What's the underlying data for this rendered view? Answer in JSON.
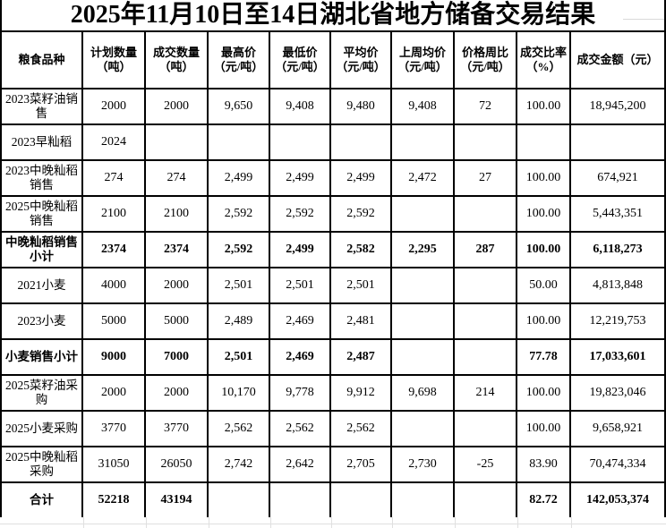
{
  "title": "2025年11月10日至14日湖北省地方储备交易结果",
  "table": {
    "columns": [
      {
        "label": "粮食品种",
        "width": 91
      },
      {
        "label": "计划数量\n（吨）",
        "width": 70
      },
      {
        "label": "成交数量\n（吨）",
        "width": 70
      },
      {
        "label": "最高价\n（元/吨）",
        "width": 69
      },
      {
        "label": "最低价\n（元/吨）",
        "width": 68
      },
      {
        "label": "平均价\n（元/吨）",
        "width": 68
      },
      {
        "label": "上周均价\n（元/吨）",
        "width": 70
      },
      {
        "label": "价格周比\n（元/吨）",
        "width": 70
      },
      {
        "label": "成交比率\n（%）",
        "width": 60
      },
      {
        "label": "成交金额（元）",
        "width": 106
      }
    ],
    "rows": [
      {
        "label": "2023菜籽油销\n售",
        "bold": false,
        "values": [
          "2000",
          "2000",
          "9,650",
          "9,408",
          "9,480",
          "9,408",
          "72",
          "100.00",
          "18,945,200"
        ]
      },
      {
        "label": "2023早籼稻",
        "bold": false,
        "values": [
          "2024",
          "",
          "",
          "",
          "",
          "",
          "",
          "",
          ""
        ]
      },
      {
        "label": "2023中晚籼稻\n销售",
        "bold": false,
        "values": [
          "274",
          "274",
          "2,499",
          "2,499",
          "2,499",
          "2,472",
          "27",
          "100.00",
          "674,921"
        ]
      },
      {
        "label": "2025中晚籼稻\n销售",
        "bold": false,
        "values": [
          "2100",
          "2100",
          "2,592",
          "2,592",
          "2,592",
          "",
          "",
          "100.00",
          "5,443,351"
        ]
      },
      {
        "label": "中晚籼稻销售\n小计",
        "bold": true,
        "values": [
          "2374",
          "2374",
          "2,592",
          "2,499",
          "2,582",
          "2,295",
          "287",
          "100.00",
          "6,118,273"
        ]
      },
      {
        "label": "2021小麦",
        "bold": false,
        "values": [
          "4000",
          "2000",
          "2,501",
          "2,501",
          "2,501",
          "",
          "",
          "50.00",
          "4,813,848"
        ]
      },
      {
        "label": "2023小麦",
        "bold": false,
        "values": [
          "5000",
          "5000",
          "2,489",
          "2,469",
          "2,481",
          "",
          "",
          "100.00",
          "12,219,753"
        ]
      },
      {
        "label": "小麦销售小计",
        "bold": true,
        "values": [
          "9000",
          "7000",
          "2,501",
          "2,469",
          "2,487",
          "",
          "",
          "77.78",
          "17,033,601"
        ]
      },
      {
        "label": "2025菜籽油采\n购",
        "bold": false,
        "values": [
          "2000",
          "2000",
          "10,170",
          "9,778",
          "9,912",
          "9,698",
          "214",
          "100.00",
          "19,823,046"
        ]
      },
      {
        "label": "2025小麦采购",
        "bold": false,
        "values": [
          "3770",
          "3770",
          "2,562",
          "2,562",
          "2,562",
          "",
          "",
          "100.00",
          "9,658,921"
        ]
      },
      {
        "label": "2025中晚籼稻\n采购",
        "bold": false,
        "values": [
          "31050",
          "26050",
          "2,742",
          "2,642",
          "2,705",
          "2,730",
          "-25",
          "83.90",
          "70,474,334"
        ]
      },
      {
        "label": "合计",
        "bold": true,
        "values": [
          "52218",
          "43194",
          "",
          "",
          "",
          "",
          "",
          "82.72",
          "142,053,374"
        ]
      }
    ]
  },
  "colors": {
    "border": "#000000",
    "gridline": "#e0e0e0",
    "background": "#ffffff",
    "text": "#000000"
  }
}
